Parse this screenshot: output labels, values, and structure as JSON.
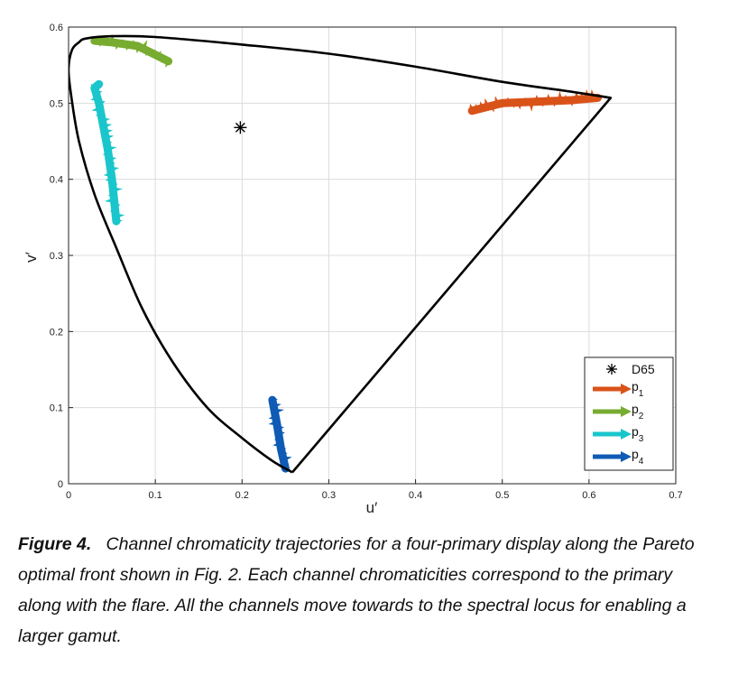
{
  "chart_data": {
    "type": "line",
    "xlabel": "u′",
    "ylabel": "v′",
    "xlim": [
      0,
      0.7
    ],
    "ylim": [
      0,
      0.6
    ],
    "x_ticks": [
      "0",
      "0.1",
      "0.2",
      "0.3",
      "0.4",
      "0.5",
      "0.6",
      "0.7"
    ],
    "y_ticks": [
      "0",
      "0.1",
      "0.2",
      "0.3",
      "0.4",
      "0.5",
      "0.6"
    ],
    "grid": true,
    "legend_position": "bottom-right",
    "spectral_locus": {
      "x": [
        0.258,
        0.235,
        0.2,
        0.16,
        0.12,
        0.085,
        0.055,
        0.03,
        0.012,
        0.003,
        0.0,
        0.004,
        0.012,
        0.02,
        0.05,
        0.1,
        0.2,
        0.3,
        0.4,
        0.5,
        0.58,
        0.625,
        0.258
      ],
      "y": [
        0.015,
        0.03,
        0.06,
        0.1,
        0.16,
        0.23,
        0.31,
        0.38,
        0.45,
        0.51,
        0.545,
        0.57,
        0.58,
        0.585,
        0.588,
        0.587,
        0.577,
        0.565,
        0.548,
        0.528,
        0.515,
        0.507,
        0.015
      ]
    },
    "markers": [
      {
        "label": "D65",
        "x": 0.198,
        "y": 0.468,
        "symbol": "asterisk"
      }
    ],
    "series": [
      {
        "name": "p1",
        "color": "#D95319",
        "x": [
          0.465,
          0.5,
          0.54,
          0.58,
          0.61
        ],
        "y": [
          0.49,
          0.5,
          0.502,
          0.504,
          0.507
        ]
      },
      {
        "name": "p2",
        "color": "#77AC30",
        "x": [
          0.115,
          0.08,
          0.05,
          0.03
        ],
        "y": [
          0.555,
          0.575,
          0.58,
          0.582
        ]
      },
      {
        "name": "p3",
        "color": "#1AC6CC",
        "x": [
          0.055,
          0.05,
          0.045,
          0.04,
          0.035,
          0.03,
          0.035
        ],
        "y": [
          0.345,
          0.4,
          0.44,
          0.47,
          0.5,
          0.52,
          0.525
        ]
      },
      {
        "name": "p4",
        "color": "#0F5BB5",
        "x": [
          0.235,
          0.24,
          0.245,
          0.25
        ],
        "y": [
          0.11,
          0.08,
          0.045,
          0.02
        ]
      }
    ]
  },
  "caption": {
    "label": "Figure 4.",
    "text": "Channel chromaticity trajectories for a four-primary display along the Pareto optimal front shown in Fig. 2. Each channel chromaticities correspond to the primary along with the flare. All the channels move towards to the spectral locus for enabling a larger gamut."
  }
}
